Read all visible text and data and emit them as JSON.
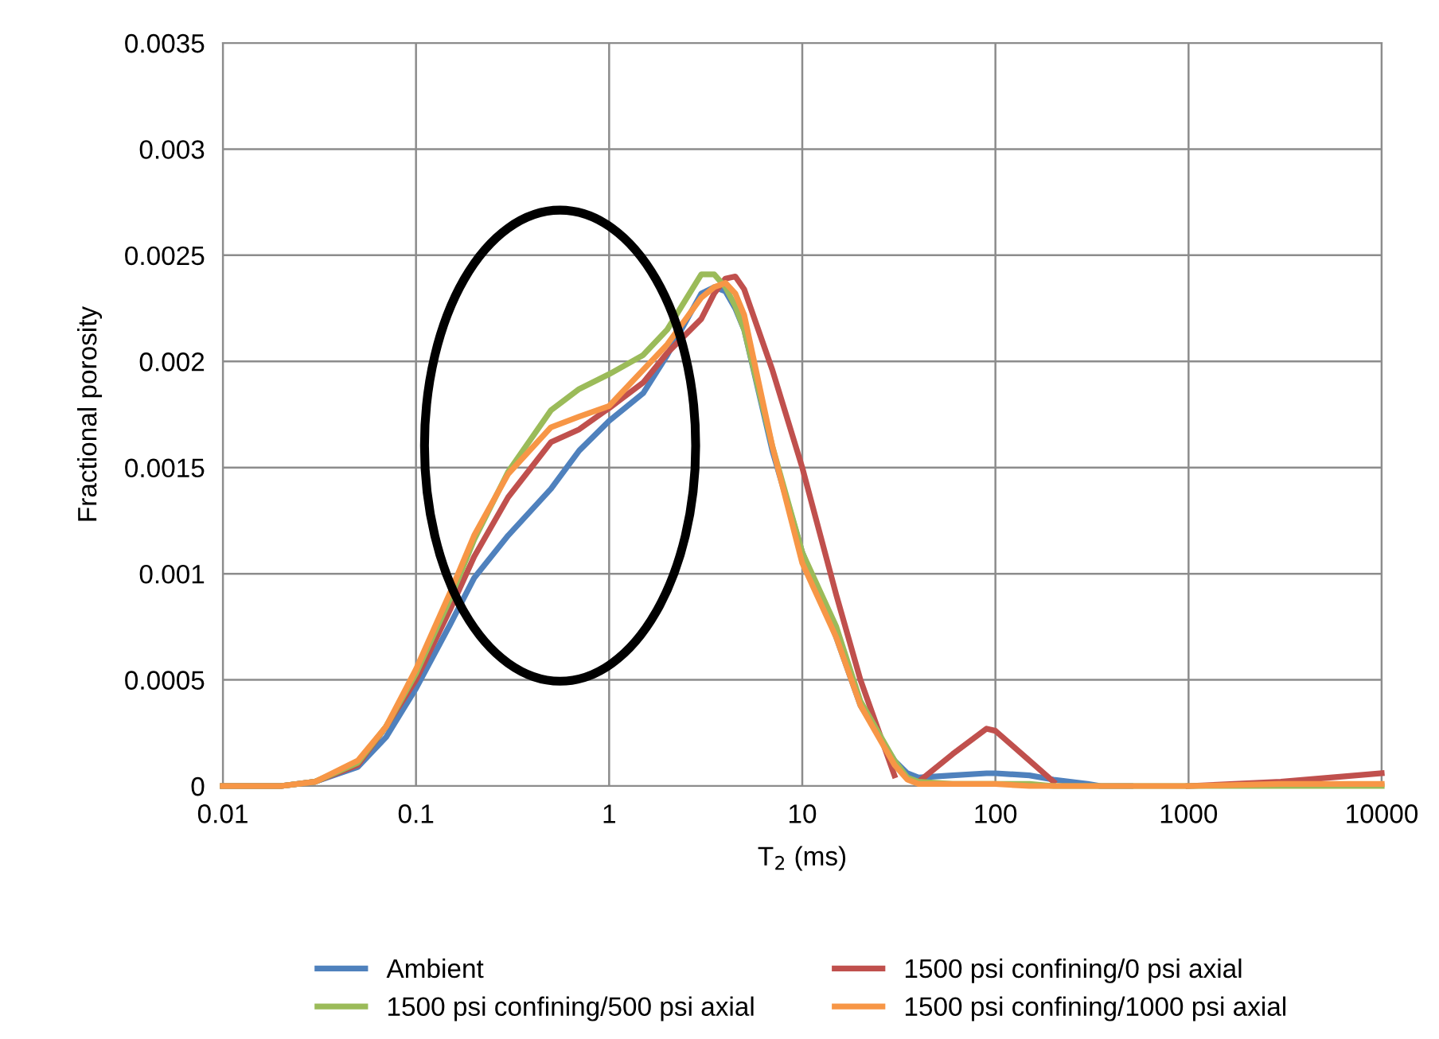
{
  "chart_data": {
    "type": "line",
    "xlabel": "T$_{2}$ (ms)",
    "ylabel": "Fractional porosity",
    "log": "x",
    "x": [
      0.01,
      0.02,
      0.03,
      0.05,
      0.07,
      0.1,
      0.15,
      0.2,
      0.3,
      0.5,
      0.7,
      1,
      1.5,
      2,
      3,
      3.5,
      4,
      4.5,
      5,
      7,
      10,
      15,
      20,
      30,
      35,
      40,
      60,
      90,
      100,
      150,
      200,
      300,
      350,
      500,
      1000,
      3000,
      10000
    ],
    "series": [
      {
        "name": "Ambient",
        "color": "#4f81bd",
        "values": [
          0,
          0,
          2e-05,
          9e-05,
          0.00023,
          0.00046,
          0.00076,
          0.00098,
          0.00118,
          0.0014,
          0.00158,
          0.00172,
          0.00185,
          0.00203,
          0.00232,
          0.00235,
          0.00233,
          0.00225,
          0.00215,
          0.00158,
          0.0011,
          0.0007,
          0.00038,
          0.00012,
          6e-05,
          4e-05,
          5e-05,
          6e-05,
          6e-05,
          5e-05,
          3e-05,
          1e-05,
          0,
          0,
          null,
          null,
          null
        ]
      },
      {
        "name": "1500 psi confining/0 psi axial",
        "color": "#c0504d",
        "values": [
          0,
          0,
          2e-05,
          0.0001,
          0.00028,
          0.0005,
          0.00083,
          0.00108,
          0.00136,
          0.00162,
          0.00168,
          0.00178,
          0.0019,
          0.00204,
          0.0022,
          0.00232,
          0.00239,
          0.0024,
          0.00234,
          0.00196,
          0.0015,
          0.0009,
          0.0005,
          5e-05,
          null,
          2e-05,
          0.00015,
          0.00027,
          0.00026,
          0.00012,
          2e-05,
          null,
          null,
          null,
          0,
          2e-05,
          6e-05
        ]
      },
      {
        "name": "1500 psi confining/500 psi axial",
        "color": "#9bbb59",
        "values": [
          0,
          0,
          2e-05,
          0.00011,
          0.00028,
          0.00053,
          0.00088,
          0.00116,
          0.00148,
          0.00177,
          0.00187,
          0.00194,
          0.00203,
          0.00215,
          0.00241,
          0.00241,
          0.00235,
          0.00226,
          0.00215,
          0.0016,
          0.0011,
          0.00075,
          0.0004,
          0.00012,
          4e-05,
          2e-05,
          1e-05,
          1e-05,
          1e-05,
          1e-05,
          0,
          0,
          0,
          0,
          0,
          0,
          0
        ]
      },
      {
        "name": "1500 psi confining/1000 psi axial",
        "color": "#f79646",
        "values": [
          0,
          0,
          2e-05,
          0.00012,
          0.00028,
          0.00055,
          0.00091,
          0.00118,
          0.00147,
          0.00169,
          0.00174,
          0.00179,
          0.00196,
          0.00208,
          0.0023,
          0.00235,
          0.00237,
          0.00232,
          0.00222,
          0.0016,
          0.00105,
          0.0007,
          0.00038,
          0.0001,
          3e-05,
          1e-05,
          1e-05,
          1e-05,
          1e-05,
          0,
          0,
          0,
          0,
          0,
          0,
          1e-05,
          1e-05
        ]
      }
    ],
    "xlim": [
      0.01,
      10000
    ],
    "xticks": [
      0.01,
      0.1,
      1,
      10,
      100,
      1000,
      10000
    ],
    "ylim": [
      0,
      0.0035
    ],
    "yticks": [
      0,
      0.0005,
      0.001,
      0.0015,
      0.002,
      0.0025,
      0.003,
      0.0035
    ],
    "grid": true,
    "legend": "bottom",
    "marker": "none",
    "line_style": "solid"
  }
}
